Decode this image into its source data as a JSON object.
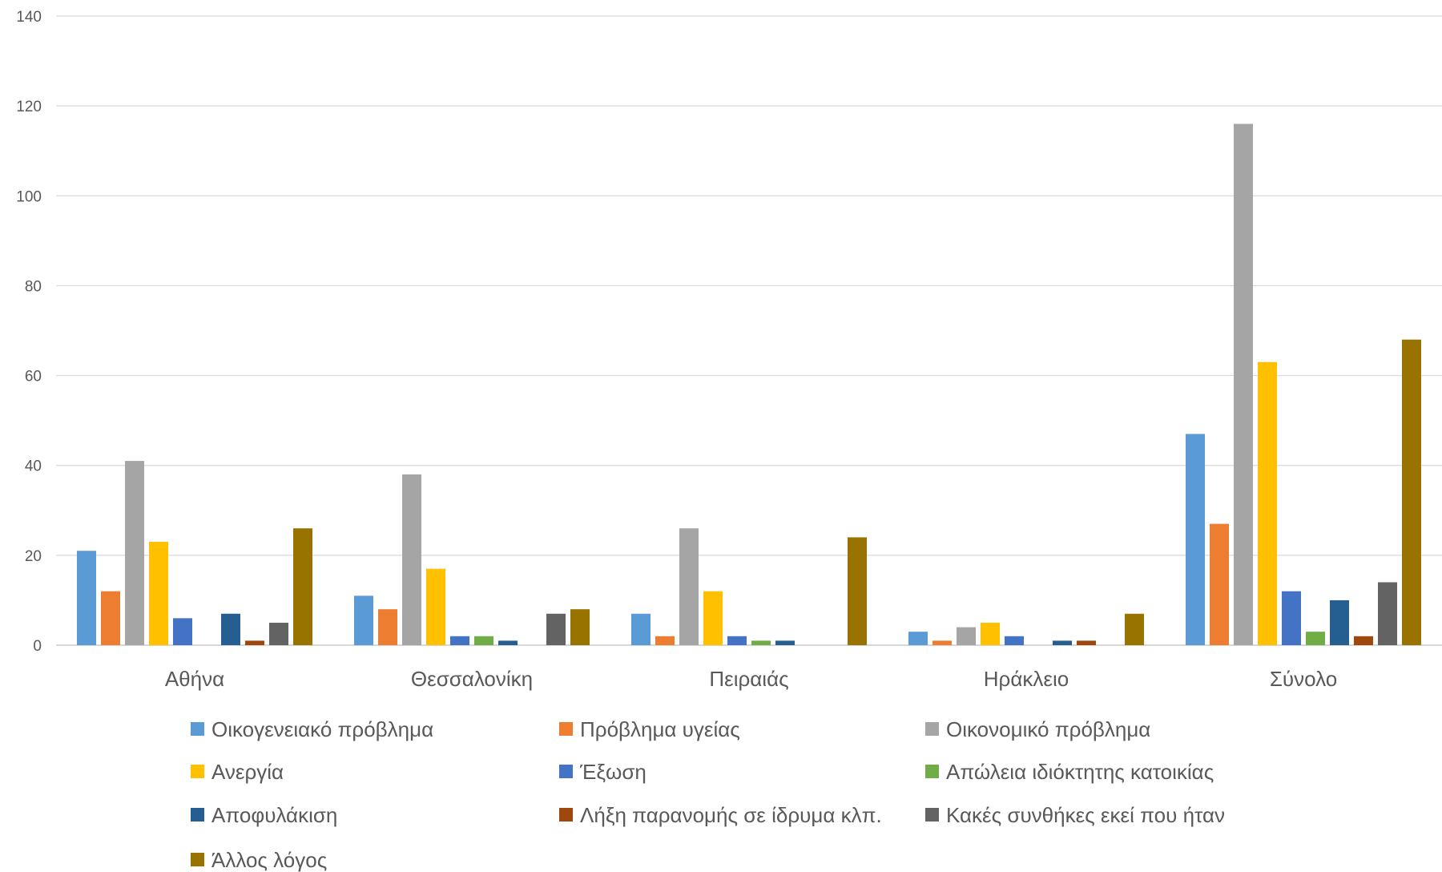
{
  "chart_data": {
    "type": "bar",
    "categories": [
      "Αθήνα",
      "Θεσσαλονίκη",
      "Πειραιάς",
      "Ηράκλειο",
      "Σύνολο"
    ],
    "ylim": [
      0,
      140
    ],
    "yticks": [
      "0",
      "20",
      "40",
      "60",
      "80",
      "100",
      "120",
      "140"
    ],
    "grid": true,
    "legend_position": "bottom",
    "series": [
      {
        "name": "Οικογενειακό πρόβλημα",
        "color": "#5b9bd5",
        "values": [
          21,
          11,
          7,
          3,
          47
        ]
      },
      {
        "name": "Πρόβλημα υγείας",
        "color": "#ed7d31",
        "values": [
          12,
          8,
          2,
          1,
          27
        ]
      },
      {
        "name": "Οικονομικό πρόβλημα",
        "color": "#a5a5a5",
        "values": [
          41,
          38,
          26,
          4,
          116
        ]
      },
      {
        "name": "Ανεργία",
        "color": "#ffc000",
        "values": [
          23,
          17,
          12,
          5,
          63
        ]
      },
      {
        "name": "Έξωση",
        "color": "#4472c4",
        "values": [
          6,
          2,
          2,
          2,
          12
        ]
      },
      {
        "name": "Απώλεια ιδιόκτητης κατοικίας",
        "color": "#70ad47",
        "values": [
          0,
          2,
          1,
          0,
          3
        ]
      },
      {
        "name": "Αποφυλάκιση",
        "color": "#255e91",
        "values": [
          7,
          1,
          1,
          1,
          10
        ]
      },
      {
        "name": "Λήξη παρανομής σε ίδρυμα κλπ.",
        "color": "#9e480e",
        "values": [
          1,
          0,
          0,
          1,
          2
        ]
      },
      {
        "name": "Κακές συνθήκες εκεί που ήταν",
        "color": "#636363",
        "values": [
          5,
          7,
          0,
          0,
          14
        ]
      },
      {
        "name": "Άλλος λόγος",
        "color": "#997300",
        "values": [
          26,
          8,
          24,
          7,
          68
        ]
      }
    ]
  }
}
